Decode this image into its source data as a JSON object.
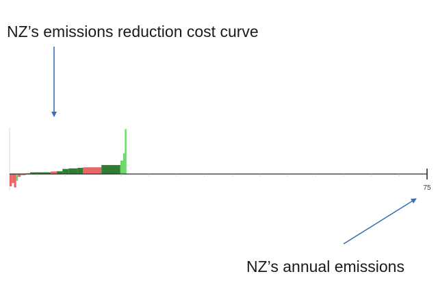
{
  "annotations": {
    "top": "NZ’s emissions reduction cost curve",
    "bottom": "NZ’s annual emissions"
  },
  "colors": {
    "arrow": "#3a6fb5",
    "negative": "#e8686a",
    "positive_dark": "#2e7d32",
    "positive_light": "#6cd86c",
    "axis": "#2a2a2a",
    "grid_tick": "#c8c8c8"
  },
  "chart_data": {
    "type": "bar",
    "xlim": [
      0,
      75
    ],
    "ylim": [
      -2.5,
      9
    ],
    "x_end_label": "75",
    "grid": false,
    "bars": [
      {
        "x0": 0.0,
        "x1": 0.4,
        "value": -2.2,
        "color": "negative"
      },
      {
        "x0": 0.4,
        "x1": 0.8,
        "value": -1.6,
        "color": "negative"
      },
      {
        "x0": 0.8,
        "x1": 1.2,
        "value": -2.4,
        "color": "negative"
      },
      {
        "x0": 1.2,
        "x1": 1.5,
        "value": -1.2,
        "color": "positive_light"
      },
      {
        "x0": 1.5,
        "x1": 2.0,
        "value": -0.5,
        "color": "negative"
      },
      {
        "x0": 2.0,
        "x1": 2.9,
        "value": -0.2,
        "color": "negative"
      },
      {
        "x0": 2.9,
        "x1": 3.7,
        "value": 0.15,
        "color": "negative"
      },
      {
        "x0": 3.7,
        "x1": 7.4,
        "value": 0.3,
        "color": "positive_dark"
      },
      {
        "x0": 7.4,
        "x1": 8.5,
        "value": 0.45,
        "color": "negative"
      },
      {
        "x0": 8.5,
        "x1": 9.5,
        "value": 0.5,
        "color": "positive_dark"
      },
      {
        "x0": 9.5,
        "x1": 10.6,
        "value": 0.9,
        "color": "positive_dark"
      },
      {
        "x0": 10.6,
        "x1": 12.2,
        "value": 1.0,
        "color": "positive_dark"
      },
      {
        "x0": 12.2,
        "x1": 13.2,
        "value": 1.1,
        "color": "positive_dark"
      },
      {
        "x0": 13.2,
        "x1": 16.5,
        "value": 1.2,
        "color": "negative"
      },
      {
        "x0": 16.5,
        "x1": 19.9,
        "value": 1.6,
        "color": "positive_dark"
      },
      {
        "x0": 19.9,
        "x1": 20.4,
        "value": 2.4,
        "color": "positive_light"
      },
      {
        "x0": 20.4,
        "x1": 20.7,
        "value": 3.7,
        "color": "positive_light"
      },
      {
        "x0": 20.7,
        "x1": 21.0,
        "value": 8.0,
        "color": "positive_light"
      }
    ]
  }
}
